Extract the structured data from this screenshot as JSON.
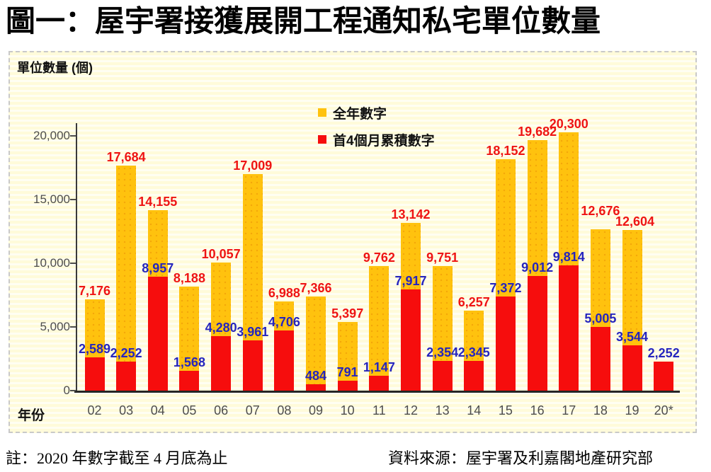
{
  "title": "圖一：屋宇署接獲展開工程通知私宅單位數量",
  "notes": {
    "left": "註：2020 年數字截至 4 月底為止",
    "right": "資料來源：屋宇署及利嘉閣地產研究部"
  },
  "chart_data": {
    "type": "bar",
    "title": "圖一：屋宇署接獲展開工程通知私宅單位數量",
    "xlabel": "年份",
    "ylabel": "單位數量 (個)",
    "ylim": [
      0,
      22000
    ],
    "grid": false,
    "legend_position": "top-center-inside",
    "y_ticks": [
      20000,
      15000,
      10000,
      5000,
      0
    ],
    "categories": [
      "02",
      "03",
      "04",
      "05",
      "06",
      "07",
      "08",
      "09",
      "10",
      "11",
      "12",
      "13",
      "14",
      "15",
      "16",
      "17",
      "18",
      "19",
      "20*"
    ],
    "series": [
      {
        "name": "全年數字",
        "color": "#ffc20e",
        "label_color": "#ee1414",
        "values": [
          7176,
          17684,
          14155,
          8188,
          10057,
          17009,
          6988,
          7366,
          5397,
          9762,
          13142,
          9751,
          6257,
          18152,
          19682,
          20300,
          12676,
          12604,
          null
        ]
      },
      {
        "name": "首4個月累積數字",
        "color": "#f60d0d",
        "label_color": "#2525be",
        "values": [
          2589,
          2252,
          8957,
          1568,
          4280,
          3961,
          4706,
          484,
          791,
          1147,
          7917,
          2354,
          2345,
          7372,
          9012,
          9814,
          5005,
          3544,
          2252
        ]
      }
    ]
  }
}
